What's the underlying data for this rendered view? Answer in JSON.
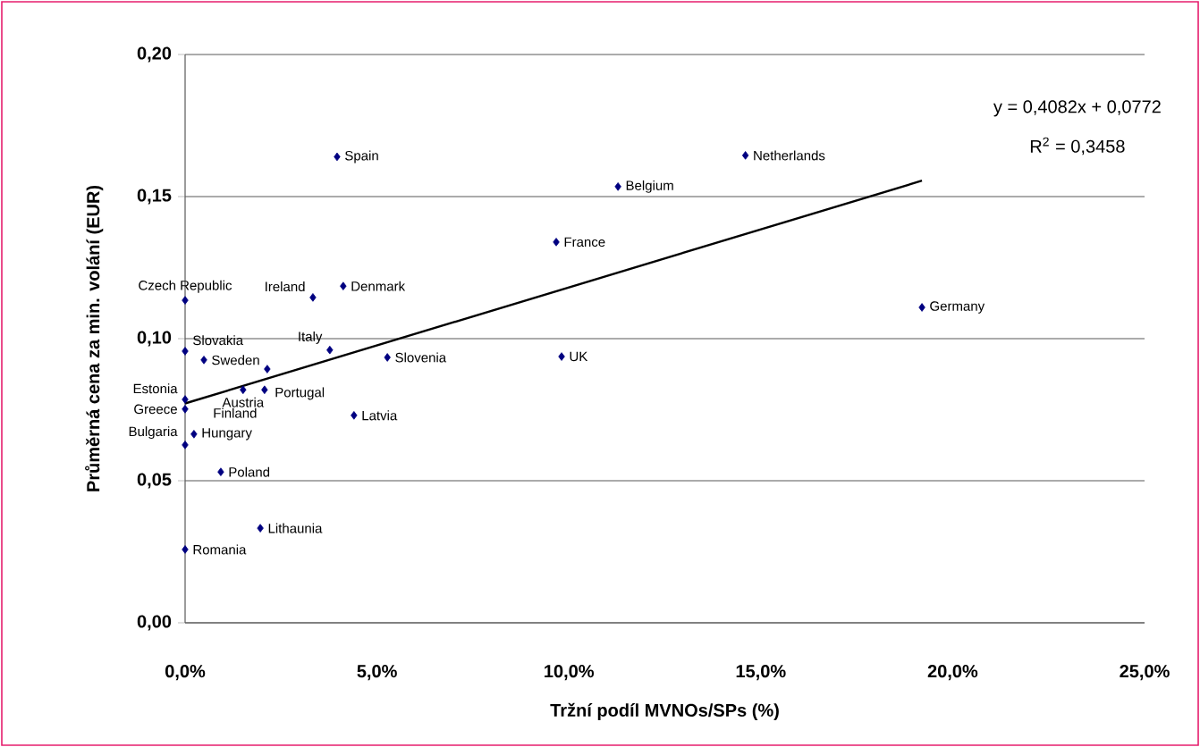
{
  "chart_data": {
    "type": "scatter",
    "xlabel": "Tržní podíl MVNOs/SPs (%)",
    "ylabel": "Průměrná cena za min. volání (EUR)",
    "xlim": [
      0,
      25
    ],
    "ylim": [
      0,
      0.2
    ],
    "xticks": [
      {
        "value": 0,
        "label": "0,0%"
      },
      {
        "value": 5,
        "label": "5,0%"
      },
      {
        "value": 10,
        "label": "10,0%"
      },
      {
        "value": 15,
        "label": "15,0%"
      },
      {
        "value": 20,
        "label": "20,0%"
      },
      {
        "value": 25,
        "label": "25,0%"
      }
    ],
    "yticks": [
      {
        "value": 0,
        "label": "0,00"
      },
      {
        "value": 0.05,
        "label": "0,05"
      },
      {
        "value": 0.1,
        "label": "0,10"
      },
      {
        "value": 0.15,
        "label": "0,15"
      },
      {
        "value": 0.2,
        "label": "0,20"
      }
    ],
    "grid": "y",
    "series": [
      {
        "color": "#000080",
        "marker": "diamond",
        "x": [
          3.96,
          14.6,
          11.28,
          9.67,
          19.2,
          4.12,
          3.33,
          0,
          3.77,
          0,
          0.49,
          2.14,
          5.27,
          9.81,
          1.51,
          2.07,
          0,
          0,
          4.4,
          0.23,
          0,
          0.93,
          1.96,
          0
        ],
        "values": [
          0.164,
          0.1645,
          0.1535,
          0.134,
          0.111,
          0.1185,
          0.1145,
          0.1135,
          0.096,
          0.0956,
          0.0925,
          0.0893,
          0.0934,
          0.0937,
          0.082,
          0.082,
          0.0786,
          0.0752,
          0.073,
          0.0664,
          0.0626,
          0.0531,
          0.0333,
          0.0258
        ]
      },
      {
        "type": "line",
        "color": "#000000",
        "marker": "none",
        "x": [
          0,
          19.2
        ],
        "values": [
          0.0772,
          0.1556
        ]
      }
    ],
    "annotations": [
      "y = 0,4082x + 0,0772",
      "R$^{2}$ = 0,3458",
      {
        "text": "Spain",
        "x": 3.96,
        "y": 0.164
      },
      {
        "text": "Netherlands",
        "x": 14.6,
        "y": 0.1645
      },
      {
        "text": "Belgium",
        "x": 11.28,
        "y": 0.1535
      },
      {
        "text": "France",
        "x": 9.67,
        "y": 0.134
      },
      {
        "text": "Germany",
        "x": 19.2,
        "y": 0.111
      },
      {
        "text": "Denmark",
        "x": 4.12,
        "y": 0.1185
      },
      {
        "text": "Ireland",
        "x": 3.33,
        "y": 0.1145
      },
      {
        "text": "Czech Republic",
        "x": 0,
        "y": 0.1135
      },
      {
        "text": "Italy",
        "x": 3.77,
        "y": 0.096
      },
      {
        "text": "Slovakia",
        "x": 0,
        "y": 0.0956
      },
      {
        "text": "Sweden",
        "x": 0.49,
        "y": 0.0925
      },
      {
        "text": "Portugal",
        "x": 2.14,
        "y": 0.0893
      },
      {
        "text": "Slovenia",
        "x": 5.27,
        "y": 0.0934
      },
      {
        "text": "UK",
        "x": 9.81,
        "y": 0.0937
      },
      {
        "text": "Austria",
        "x": 1.51,
        "y": 0.082
      },
      {
        "text": "Finland",
        "x": 2.07,
        "y": 0.082
      },
      {
        "text": "Estonia",
        "x": 0,
        "y": 0.0786
      },
      {
        "text": "Greece",
        "x": 0,
        "y": 0.0752
      },
      {
        "text": "Latvia",
        "x": 4.4,
        "y": 0.073
      },
      {
        "text": "Hungary",
        "x": 0.23,
        "y": 0.0664
      },
      {
        "text": "Bulgaria",
        "x": 0,
        "y": 0.0626
      },
      {
        "text": "Poland",
        "x": 0.93,
        "y": 0.0531
      },
      {
        "text": "Lithaunia",
        "x": 1.96,
        "y": 0.0333
      },
      {
        "text": "Romania",
        "x": 0,
        "y": 0.0258
      }
    ]
  }
}
